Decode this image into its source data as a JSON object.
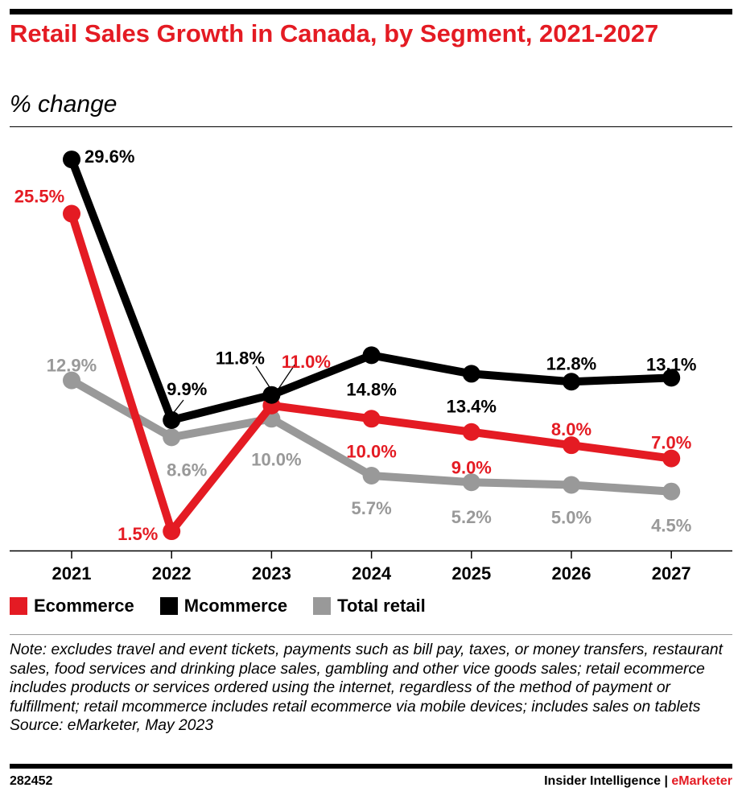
{
  "title": "Retail Sales Growth in Canada, by Segment, 2021-2027",
  "subtitle": "% change",
  "chart_data": {
    "type": "line",
    "title": "Retail Sales Growth in Canada, by Segment, 2021-2027",
    "ylabel": "% change",
    "categories": [
      "2021",
      "2022",
      "2023",
      "2024",
      "2025",
      "2026",
      "2027"
    ],
    "ylim": [
      0,
      30
    ],
    "grid": false,
    "legend": "bottom-left",
    "series": [
      {
        "name": "Ecommerce",
        "color": "#e41b23",
        "values": [
          25.5,
          1.5,
          11.0,
          10.0,
          9.0,
          8.0,
          7.0
        ],
        "labels": [
          "25.5%",
          "1.5%",
          "11.0%",
          "10.0%",
          "9.0%",
          "8.0%",
          "7.0%"
        ]
      },
      {
        "name": "Mcommerce",
        "color": "#000000",
        "values": [
          29.6,
          9.9,
          11.8,
          14.8,
          13.4,
          12.8,
          13.1
        ],
        "labels": [
          "29.6%",
          "9.9%",
          "11.8%",
          "14.8%",
          "13.4%",
          "12.8%",
          "13.1%"
        ]
      },
      {
        "name": "Total retail",
        "color": "#999999",
        "values": [
          12.9,
          8.6,
          10.0,
          5.7,
          5.2,
          5.0,
          4.5
        ],
        "labels": [
          "12.9%",
          "8.6%",
          "10.0%",
          "5.7%",
          "5.2%",
          "5.0%",
          "4.5%"
        ]
      }
    ]
  },
  "note": "Note: excludes travel and event tickets, payments such as bill pay, taxes, or money transfers, restaurant sales, food services and drinking place sales, gambling and other vice goods sales; retail ecommerce includes products or services ordered using the internet, regardless of the method of payment or fulfillment; retail mcommerce includes retail ecommerce via mobile devices; includes sales on tablets",
  "source": "Source: eMarketer, May 2023",
  "footer": {
    "id": "282452",
    "brand_left": "Insider Intelligence | ",
    "brand_right": "eMarketer"
  }
}
